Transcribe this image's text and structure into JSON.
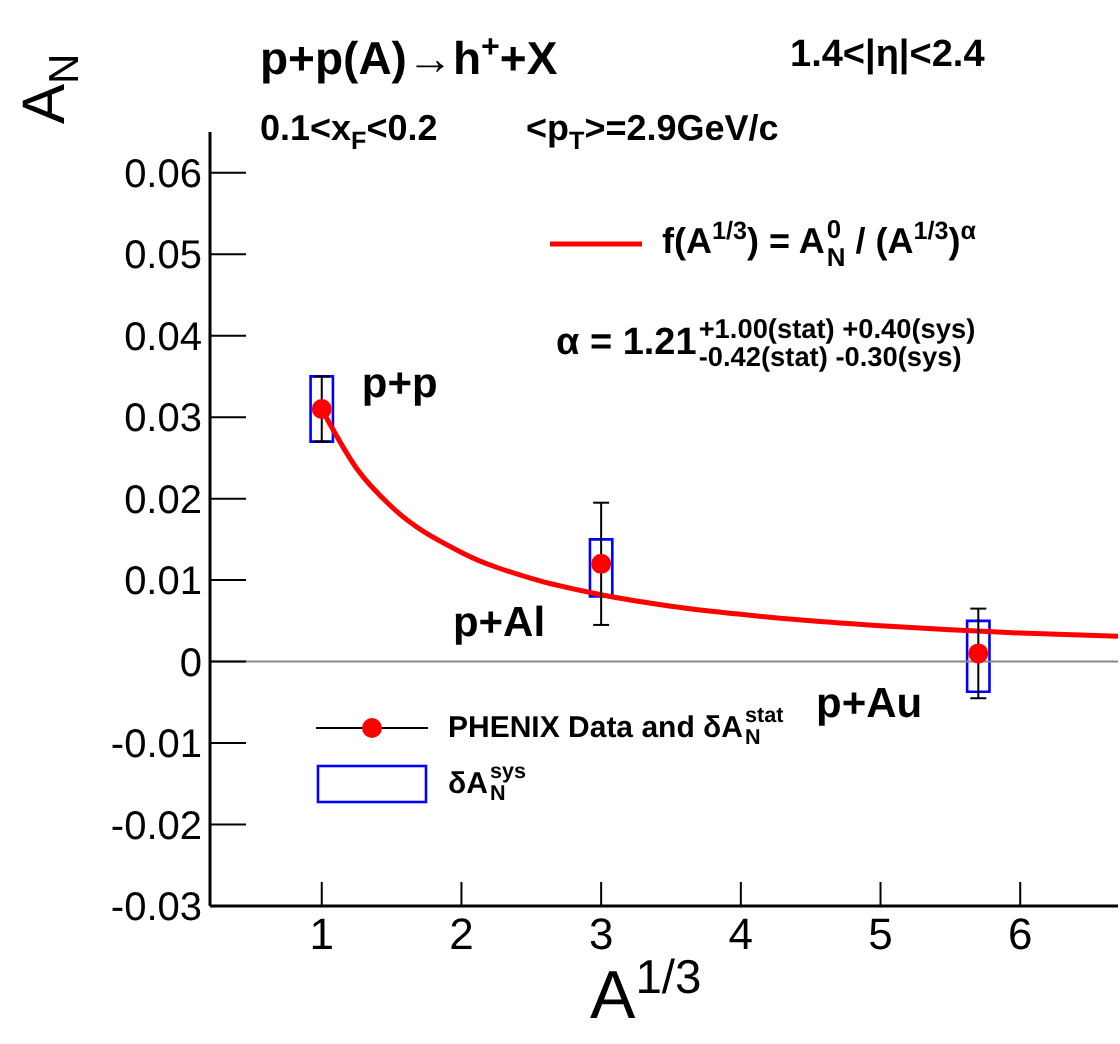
{
  "chart_data": {
    "type": "scatter",
    "title": "p+p(A)→h$^{+}$+X",
    "xlabel": "A$^{1/3}$",
    "ylabel": "A$_{N}$",
    "xlim": [
      0.2,
      6.7
    ],
    "xticks": [
      1,
      2,
      3,
      4,
      5,
      6
    ],
    "ylim": [
      -0.03,
      0.065
    ],
    "yticks": [
      -0.03,
      -0.02,
      -0.01,
      0,
      0.01,
      0.02,
      0.03,
      0.04,
      0.05,
      0.06
    ],
    "legend": "bottom left",
    "ref_lines": [
      {
        "axis": "y",
        "value": 0,
        "color": "#888888"
      }
    ],
    "annotations": [
      "1.4<|η|<2.4",
      "0.1<x$_{F}$<0.2",
      "<p$_{T}$>=2.9GeV/c",
      "α = 1.21$^{+1.00(stat) +0.40(sys)}$$_{-0.42(stat) -0.30(sys)}$",
      {
        "text": "p+p",
        "x": 1,
        "y": 0.031
      },
      {
        "text": "p+Al",
        "x": 3,
        "y": 0.012
      },
      {
        "text": "p+Au",
        "x": 5.7,
        "y": 0.001
      }
    ],
    "series": [
      {
        "type": "line",
        "name": "f(A$^{1/3}$) = A$_{N}$$^{0}$ / (A$^{1/3}$)$^{α}$",
        "color": "#ff0000",
        "x": [
          1,
          1.25,
          1.5,
          2,
          2.5,
          3,
          3.5,
          4,
          4.5,
          5,
          5.5,
          6,
          6.7
        ],
        "values": [
          0.031,
          0.0237,
          0.019,
          0.0134,
          0.0102,
          0.0082,
          0.0068,
          0.0058,
          0.005,
          0.0044,
          0.0039,
          0.0035,
          0.0031
        ]
      },
      {
        "type": "bar",
        "name": "δA$_{N}$$^{sys}$",
        "color": "#0000ff",
        "x": [
          1,
          3,
          5.7
        ],
        "base": [
          0.027,
          0.008,
          -0.0037
        ],
        "values": [
          0.008,
          0.007,
          0.0087
        ]
      },
      {
        "name": "PHENIX Data and δA$_{N}$$^{stat}$",
        "marker": "circle",
        "color": "#ff0000",
        "x": [
          1,
          3,
          5.7
        ],
        "values": [
          0.031,
          0.012,
          0.001
        ],
        "errors": [
          0.004,
          0.0075,
          0.0055
        ]
      }
    ]
  }
}
